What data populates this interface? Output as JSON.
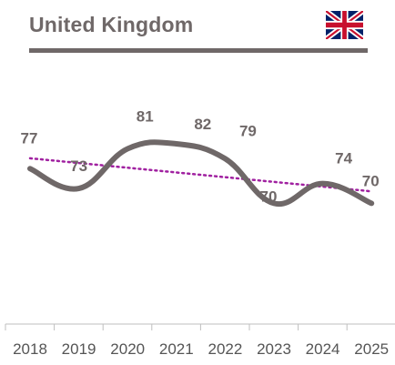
{
  "header": {
    "title": "United Kingdom",
    "flag_icon": "uk-flag-icon"
  },
  "colors": {
    "series": "#6f6868",
    "trend": "#a020a0",
    "axis": "#bfbfbf",
    "flag_blue": "#012169",
    "flag_red": "#c8102e"
  },
  "chart_data": {
    "type": "line",
    "categories": [
      "2018",
      "2019",
      "2020",
      "2021",
      "2022",
      "2023",
      "2024",
      "2025"
    ],
    "values": [
      77,
      73,
      81,
      82,
      79,
      70,
      74,
      70
    ],
    "smooth": true,
    "trendline": {
      "type": "linear",
      "style": "dotted"
    },
    "data_labels": true,
    "grid": false,
    "legend": "none",
    "title": "United Kingdom",
    "xlabel": "",
    "ylabel": ""
  }
}
